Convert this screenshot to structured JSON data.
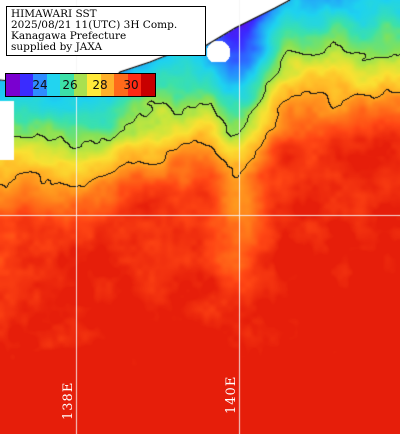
{
  "title": {
    "lines": [
      "HIMAWARI SST",
      "2025/08/21 11(UTC) 3H Comp.",
      "Kanagawa Prefecture",
      "supplied by JAXA"
    ]
  },
  "legend": {
    "ticks": [
      "24",
      "26",
      "28",
      "30"
    ],
    "colors": [
      "#7a00d0",
      "#3a2cff",
      "#2f8cff",
      "#22d4f0",
      "#3ce0a8",
      "#a8e050",
      "#ffe93a",
      "#ffb02a",
      "#ff6a1a",
      "#ff2a14",
      "#c80000"
    ]
  },
  "grid": {
    "lon_labels": [
      "138E",
      "140E"
    ]
  },
  "colors": {
    "land": "#ffffff",
    "coast": "#000000",
    "grid": "#f2f2f2"
  }
}
